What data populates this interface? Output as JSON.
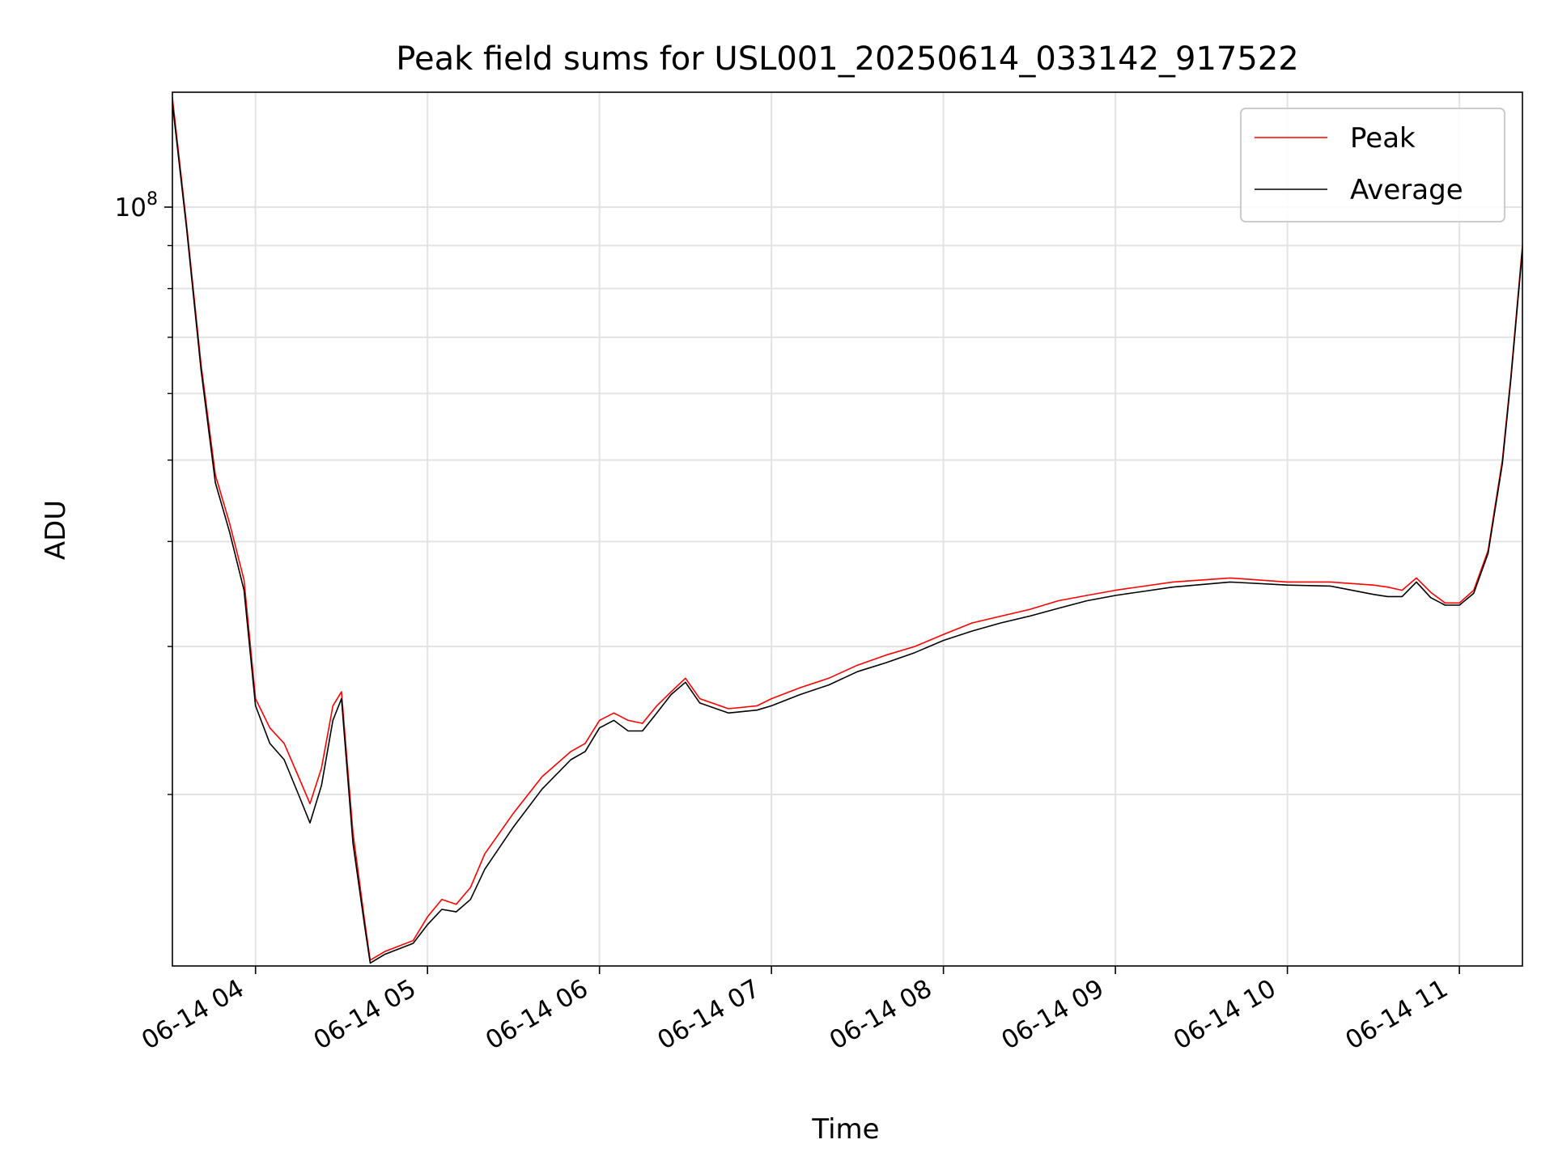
{
  "chart_data": {
    "type": "line",
    "title": "Peak field sums for USL001_20250614_033142_917522",
    "xlabel": "Time",
    "ylabel": "ADU",
    "yscale": "log",
    "grid": true,
    "legend_position": "upper right",
    "xlim": [
      "06-14 03:31",
      "06-14 11:22"
    ],
    "ylim": [
      12500000,
      137000000
    ],
    "x_ticks": [
      "06-14 04",
      "06-14 05",
      "06-14 06",
      "06-14 07",
      "06-14 08",
      "06-14 09",
      "06-14 10",
      "06-14 11"
    ],
    "y_ticks": [
      {
        "label": "10",
        "exponent": "8",
        "value": 100000000
      }
    ],
    "x_tick_values": [
      "06-14 04:00",
      "06-14 05:00",
      "06-14 06:00",
      "06-14 07:00",
      "06-14 08:00",
      "06-14 09:00",
      "06-14 10:00",
      "06-14 11:00"
    ],
    "y_minor_ticks": [
      20000000,
      30000000,
      40000000,
      50000000,
      60000000,
      70000000,
      80000000,
      90000000
    ],
    "series": [
      {
        "name": "Peak",
        "color": "#ff0000",
        "x": [
          "06-14 03:31",
          "06-14 03:36",
          "06-14 03:41",
          "06-14 03:46",
          "06-14 03:51",
          "06-14 03:56",
          "06-14 04:00",
          "06-14 04:05",
          "06-14 04:10",
          "06-14 04:15",
          "06-14 04:19",
          "06-14 04:23",
          "06-14 04:27",
          "06-14 04:30",
          "06-14 04:34",
          "06-14 04:38",
          "06-14 04:40",
          "06-14 04:45",
          "06-14 04:50",
          "06-14 04:55",
          "06-14 05:00",
          "06-14 05:05",
          "06-14 05:10",
          "06-14 05:15",
          "06-14 05:20",
          "06-14 05:30",
          "06-14 05:40",
          "06-14 05:50",
          "06-14 05:55",
          "06-14 06:00",
          "06-14 06:05",
          "06-14 06:10",
          "06-14 06:15",
          "06-14 06:20",
          "06-14 06:25",
          "06-14 06:30",
          "06-14 06:35",
          "06-14 06:45",
          "06-14 06:55",
          "06-14 07:00",
          "06-14 07:10",
          "06-14 07:20",
          "06-14 07:30",
          "06-14 07:40",
          "06-14 07:50",
          "06-14 08:00",
          "06-14 08:10",
          "06-14 08:20",
          "06-14 08:30",
          "06-14 08:40",
          "06-14 08:50",
          "06-14 09:00",
          "06-14 09:20",
          "06-14 09:40",
          "06-14 10:00",
          "06-14 10:15",
          "06-14 10:30",
          "06-14 10:35",
          "06-14 10:40",
          "06-14 10:45",
          "06-14 10:50",
          "06-14 10:55",
          "06-14 11:00",
          "06-14 11:05",
          "06-14 11:10",
          "06-14 11:15",
          "06-14 11:18",
          "06-14 11:22"
        ],
        "y": [
          135000000,
          95000000,
          65000000,
          48000000,
          42000000,
          36000000,
          26000000,
          24000000,
          23000000,
          21000000,
          19500000,
          21500000,
          25500000,
          26500000,
          18000000,
          14200000,
          12700000,
          13000000,
          13200000,
          13400000,
          14300000,
          15000000,
          14800000,
          15500000,
          17000000,
          19000000,
          21000000,
          22500000,
          23000000,
          24500000,
          25000000,
          24500000,
          24300000,
          25500000,
          26500000,
          27500000,
          26000000,
          25300000,
          25500000,
          26000000,
          26800000,
          27500000,
          28500000,
          29300000,
          30000000,
          31000000,
          32000000,
          32600000,
          33200000,
          34000000,
          34500000,
          35000000,
          35800000,
          36200000,
          35800000,
          35800000,
          35500000,
          35300000,
          35000000,
          36200000,
          34800000,
          33800000,
          33800000,
          35000000,
          39000000,
          50000000,
          63000000,
          90000000
        ]
      },
      {
        "name": "Average",
        "color": "#000000",
        "x": [
          "06-14 03:31",
          "06-14 03:36",
          "06-14 03:41",
          "06-14 03:46",
          "06-14 03:51",
          "06-14 03:56",
          "06-14 04:00",
          "06-14 04:05",
          "06-14 04:10",
          "06-14 04:15",
          "06-14 04:19",
          "06-14 04:23",
          "06-14 04:27",
          "06-14 04:30",
          "06-14 04:34",
          "06-14 04:38",
          "06-14 04:40",
          "06-14 04:45",
          "06-14 04:50",
          "06-14 04:55",
          "06-14 05:00",
          "06-14 05:05",
          "06-14 05:10",
          "06-14 05:15",
          "06-14 05:20",
          "06-14 05:30",
          "06-14 05:40",
          "06-14 05:50",
          "06-14 05:55",
          "06-14 06:00",
          "06-14 06:05",
          "06-14 06:10",
          "06-14 06:15",
          "06-14 06:20",
          "06-14 06:25",
          "06-14 06:30",
          "06-14 06:35",
          "06-14 06:45",
          "06-14 06:55",
          "06-14 07:00",
          "06-14 07:10",
          "06-14 07:20",
          "06-14 07:30",
          "06-14 07:40",
          "06-14 07:50",
          "06-14 08:00",
          "06-14 08:10",
          "06-14 08:20",
          "06-14 08:30",
          "06-14 08:40",
          "06-14 08:50",
          "06-14 09:00",
          "06-14 09:20",
          "06-14 09:40",
          "06-14 10:00",
          "06-14 10:15",
          "06-14 10:30",
          "06-14 10:35",
          "06-14 10:40",
          "06-14 10:45",
          "06-14 10:50",
          "06-14 10:55",
          "06-14 11:00",
          "06-14 11:05",
          "06-14 11:10",
          "06-14 11:15",
          "06-14 11:18",
          "06-14 11:22"
        ],
        "y": [
          133000000,
          94000000,
          64000000,
          47000000,
          41000000,
          35000000,
          25500000,
          23000000,
          22000000,
          20000000,
          18500000,
          20500000,
          24500000,
          26000000,
          17500000,
          14000000,
          12600000,
          12900000,
          13100000,
          13300000,
          14000000,
          14600000,
          14500000,
          15000000,
          16300000,
          18300000,
          20300000,
          22000000,
          22500000,
          24000000,
          24500000,
          23800000,
          23800000,
          25000000,
          26300000,
          27200000,
          25700000,
          25000000,
          25200000,
          25500000,
          26300000,
          27000000,
          28000000,
          28700000,
          29500000,
          30500000,
          31300000,
          32000000,
          32600000,
          33300000,
          34000000,
          34500000,
          35300000,
          35800000,
          35500000,
          35400000,
          34600000,
          34400000,
          34400000,
          35800000,
          34300000,
          33600000,
          33600000,
          34700000,
          38700000,
          49500000,
          62500000,
          89000000
        ]
      }
    ]
  }
}
